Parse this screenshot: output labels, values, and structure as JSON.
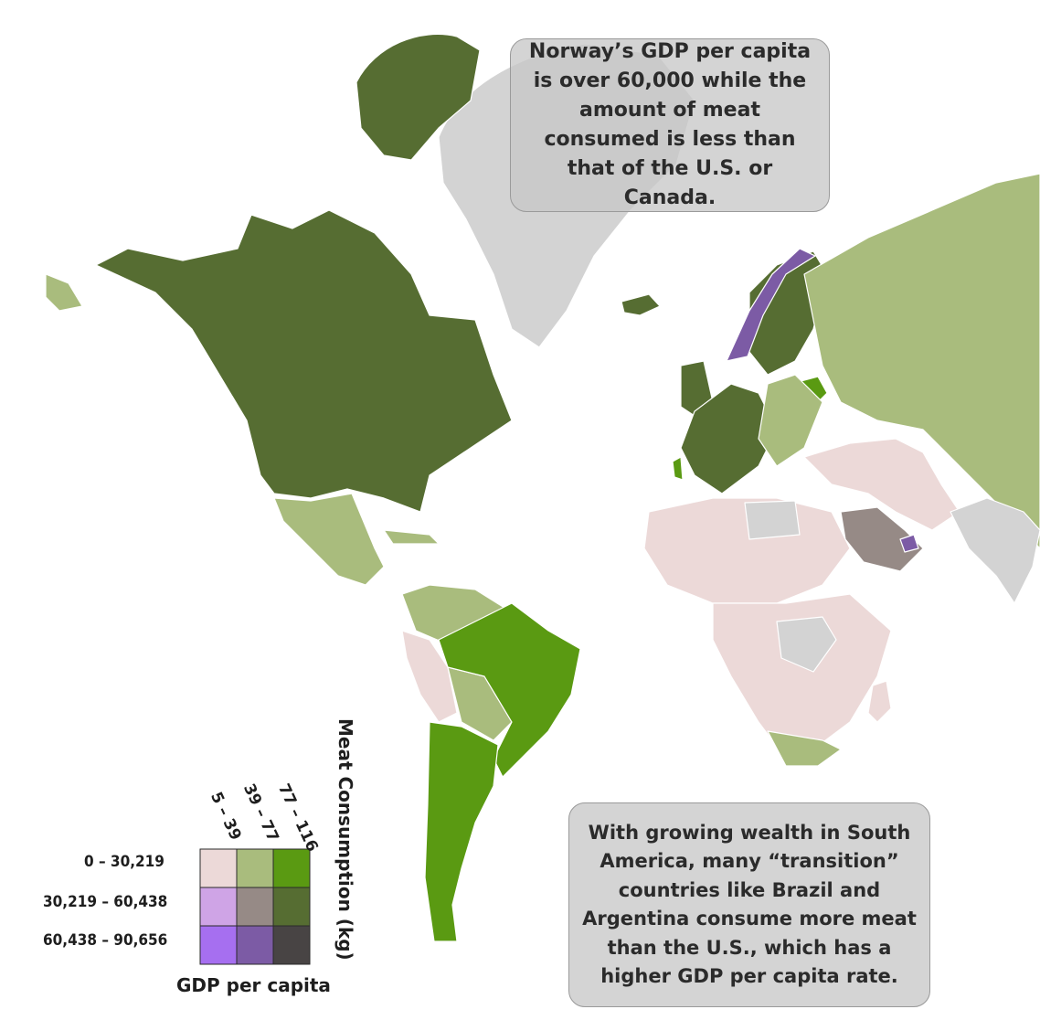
{
  "map": {
    "colors": {
      "ocean": "#ffffff",
      "no_data": "#d3d3d3",
      "low_gdp_low_meat": "#ecd9d8",
      "low_gdp_mid_meat": "#a9bc7d",
      "low_gdp_high_meat": "#5a9a12",
      "mid_gdp_low_meat": "#cfa4e6",
      "mid_gdp_mid_meat": "#968a86",
      "mid_gdp_high_meat": "#566d32",
      "high_gdp_low_meat": "#a66ff0",
      "high_gdp_mid_meat": "#7c5ba5",
      "high_gdp_high_meat": "#484444"
    }
  },
  "callouts": {
    "norway": "Norway’s GDP per capita is over 60,000 while the amount of meat consumed is less than that of the U.S. or Canada.",
    "south_america": "With growing wealth in South America, many “transition” countries like Brazil and Argentina consume more meat than the U.S., which has a higher GDP per capita rate."
  },
  "legend": {
    "y_axis_title": "Meat Consumption (kg)",
    "x_axis_title": "GDP per capita",
    "meat_bins": [
      "5 – 39",
      "39 – 77",
      "77 – 116"
    ],
    "gdp_bins": [
      "0 – 30,219",
      "30,219 – 60,438",
      "60,438 – 90,656"
    ],
    "grid_colors": [
      [
        "#ecd9d8",
        "#a9bc7d",
        "#5a9a12"
      ],
      [
        "#cfa4e6",
        "#968a86",
        "#566d32"
      ],
      [
        "#a66ff0",
        "#7c5ba5",
        "#484444"
      ]
    ]
  }
}
